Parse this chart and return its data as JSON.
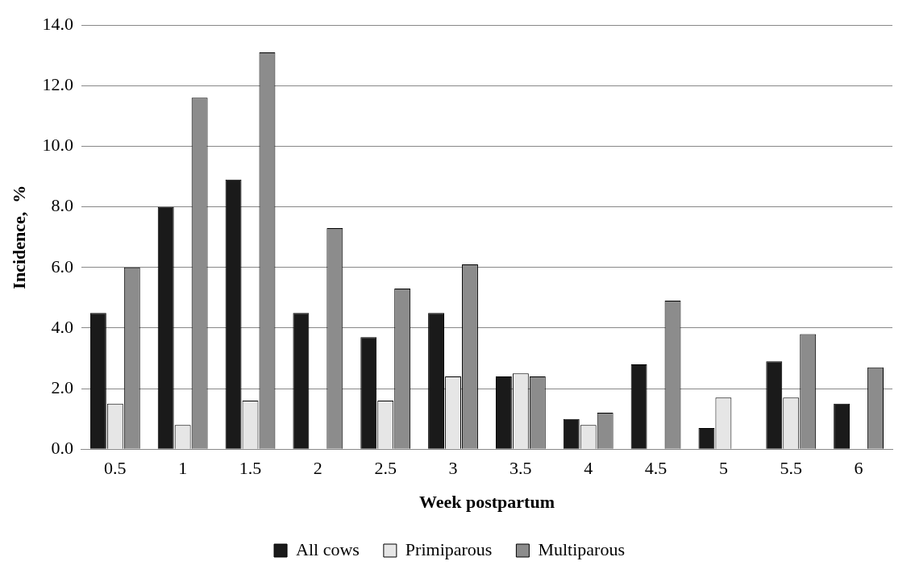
{
  "chart_data": {
    "type": "bar",
    "xlabel": "Week postpartum",
    "ylabel": "Incidence,  %",
    "categories": [
      "0.5",
      "1",
      "1.5",
      "2",
      "2.5",
      "3",
      "3.5",
      "4",
      "4.5",
      "5",
      "5.5",
      "6"
    ],
    "series": [
      {
        "name": "All cows",
        "color": "#1a1a1a",
        "values": [
          4.5,
          8.0,
          8.9,
          4.5,
          3.7,
          4.5,
          2.4,
          1.0,
          2.8,
          0.7,
          2.9,
          1.5
        ]
      },
      {
        "name": "Primiparous",
        "color": "#e6e6e6",
        "values": [
          1.5,
          0.8,
          1.6,
          0,
          1.6,
          2.4,
          2.5,
          0.8,
          0,
          1.7,
          1.7,
          0
        ]
      },
      {
        "name": "Multiparous",
        "color": "#8c8c8c",
        "values": [
          6.0,
          11.6,
          13.1,
          7.3,
          5.3,
          6.1,
          2.4,
          1.2,
          4.9,
          0,
          3.8,
          2.7
        ]
      }
    ],
    "ylim": [
      0,
      14
    ],
    "yticks": [
      {
        "value": 0,
        "label": "0.0"
      },
      {
        "value": 2,
        "label": "2.0"
      },
      {
        "value": 4,
        "label": "4.0"
      },
      {
        "value": 6,
        "label": "6.0"
      },
      {
        "value": 8,
        "label": "8.0"
      },
      {
        "value": 10,
        "label": "10.0"
      },
      {
        "value": 12,
        "label": "12.0"
      },
      {
        "value": 14,
        "label": "14.0"
      }
    ],
    "grid": "y",
    "legend": "bottom"
  }
}
